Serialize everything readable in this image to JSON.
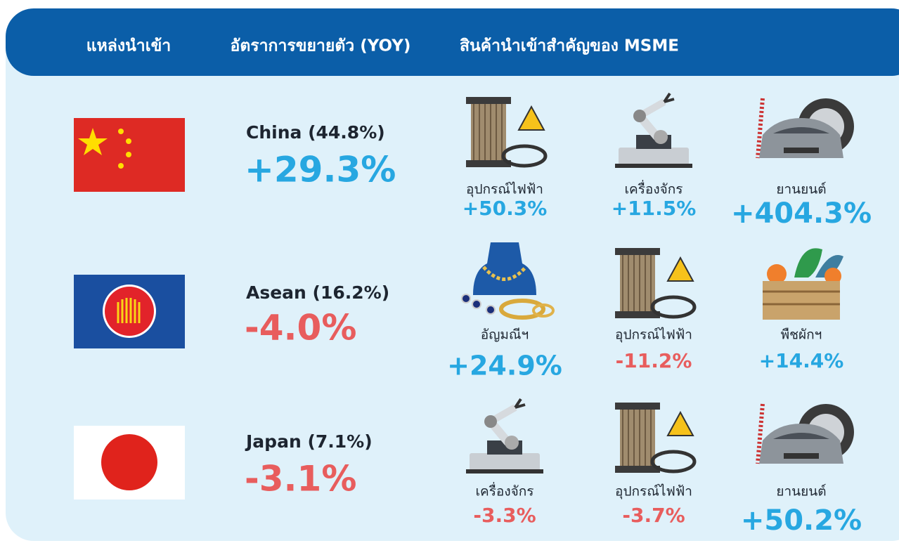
{
  "header": {
    "columns": [
      "แหล่งนำเข้า",
      "อัตราการขยายตัว (YOY)",
      "สินค้านำเข้าสำคัญของ MSME"
    ]
  },
  "rows": [
    {
      "source": "China (44.8%)",
      "growth": "+29.3%",
      "products": [
        {
          "name": "อุปกรณ์ไฟฟ้า",
          "growth": "+50.3%"
        },
        {
          "name": "เครื่องจักร",
          "growth": "+11.5%"
        },
        {
          "name": "ยานยนต์",
          "growth": "+404.3%"
        }
      ]
    },
    {
      "source": "Asean (16.2%)",
      "growth": "-4.0%",
      "products": [
        {
          "name": "อัญมณีฯ",
          "growth": "+24.9%"
        },
        {
          "name": "อุปกรณ์ไฟฟ้า",
          "growth": "-11.2%"
        },
        {
          "name": "พืชผักฯ",
          "growth": "+14.4%"
        }
      ]
    },
    {
      "source": "Japan (7.1%)",
      "growth": "-3.1%",
      "products": [
        {
          "name": "เครื่องจักร",
          "growth": "-3.3%"
        },
        {
          "name": "อุปกรณ์ไฟฟ้า",
          "growth": "-3.7%"
        },
        {
          "name": "ยานยนต์",
          "growth": "+50.2%"
        }
      ]
    }
  ]
}
